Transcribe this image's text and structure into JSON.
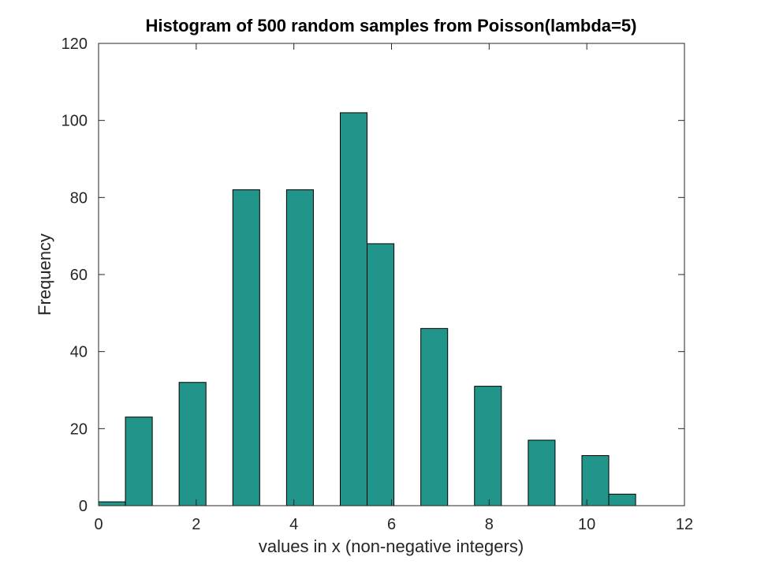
{
  "chart_data": {
    "type": "bar",
    "title": "Histogram of 500 random samples from Poisson(lambda=5)",
    "xlabel": "values in x (non-negative integers)",
    "ylabel": "Frequency",
    "xlim": [
      0,
      12
    ],
    "ylim": [
      0,
      120
    ],
    "xticks": [
      0,
      2,
      4,
      6,
      8,
      10,
      12
    ],
    "yticks": [
      0,
      20,
      40,
      60,
      80,
      100,
      120
    ],
    "xtick_labels": [
      "0",
      "2",
      "4",
      "6",
      "8",
      "10",
      "12"
    ],
    "ytick_labels": [
      "0",
      "20",
      "40",
      "60",
      "80",
      "100",
      "120"
    ],
    "bin_edges": [
      0,
      0.55,
      1.1,
      1.65,
      2.2,
      2.75,
      3.3,
      3.85,
      4.4,
      4.95,
      5.5,
      6.05,
      6.6,
      7.15,
      7.7,
      8.25,
      8.8,
      9.35,
      9.9,
      10.45,
      11
    ],
    "bins": [
      {
        "x0": 0,
        "x1": 0.55,
        "value": 1
      },
      {
        "x0": 0.55,
        "x1": 1.1,
        "value": 23
      },
      {
        "x0": 1.65,
        "x1": 2.2,
        "value": 32
      },
      {
        "x0": 2.75,
        "x1": 3.3,
        "value": 82
      },
      {
        "x0": 3.85,
        "x1": 4.4,
        "value": 82
      },
      {
        "x0": 4.95,
        "x1": 5.5,
        "value": 102
      },
      {
        "x0": 5.5,
        "x1": 6.05,
        "value": 68
      },
      {
        "x0": 6.6,
        "x1": 7.15,
        "value": 46
      },
      {
        "x0": 7.7,
        "x1": 8.25,
        "value": 31
      },
      {
        "x0": 8.8,
        "x1": 9.35,
        "value": 17
      },
      {
        "x0": 9.9,
        "x1": 10.45,
        "value": 13
      },
      {
        "x0": 10.45,
        "x1": 11,
        "value": 3
      }
    ],
    "bar_color": "#21958a",
    "bar_edge_color": "#000000",
    "grid": false,
    "box": true,
    "legend": "none"
  }
}
